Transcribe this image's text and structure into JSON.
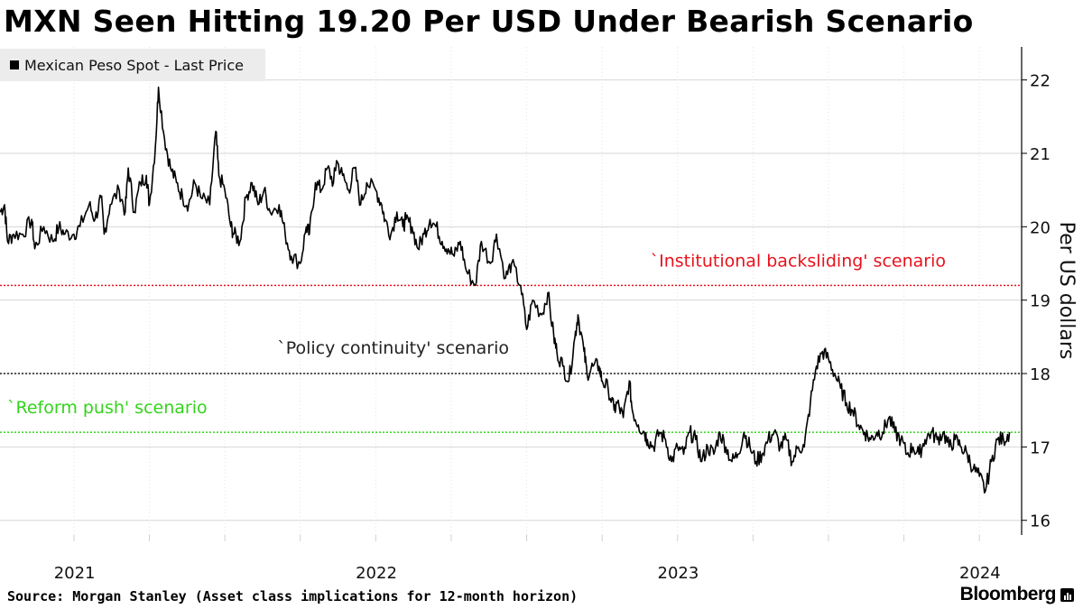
{
  "chart_data": {
    "type": "line",
    "title": "MXN Seen Hitting 19.20 Per USD Under Bearish Scenario",
    "legend": [
      {
        "label": "Mexican Peso Spot - Last Price",
        "color": "#000000"
      }
    ],
    "legend_position": "top-left",
    "ylabel": "Per US dollars",
    "y_axis_position": "right",
    "ylim": [
      15.8,
      22.45
    ],
    "y_ticks": [
      16,
      17,
      18,
      19,
      20,
      21,
      22
    ],
    "grid": true,
    "xlim": [
      2020.755,
      2024.14
    ],
    "x_ticks": [
      {
        "label": "2021",
        "value": 2021.0
      },
      {
        "label": "2022",
        "value": 2022.0
      },
      {
        "label": "2023",
        "value": 2023.0
      },
      {
        "label": "2024",
        "value": 2024.0
      }
    ],
    "reference_lines": [
      {
        "label": "`Institutional backsliding' scenario",
        "value": 19.2,
        "color": "#e8121c"
      },
      {
        "label": "`Policy continuity' scenario",
        "value": 18.0,
        "color": "#222222"
      },
      {
        "label": "`Reform push' scenario",
        "value": 17.2,
        "color": "#33d41c"
      }
    ],
    "series": [
      {
        "name": "Mexican Peso Spot - Last Price",
        "x": [
          2020.755,
          2020.77,
          2020.78,
          2020.8,
          2020.83,
          2020.86,
          2020.87,
          2020.9,
          2020.93,
          2020.95,
          2020.97,
          2021.0,
          2021.02,
          2021.05,
          2021.07,
          2021.09,
          2021.1,
          2021.12,
          2021.15,
          2021.17,
          2021.18,
          2021.2,
          2021.22,
          2021.24,
          2021.25,
          2021.27,
          2021.28,
          2021.3,
          2021.32,
          2021.34,
          2021.36,
          2021.38,
          2021.4,
          2021.42,
          2021.45,
          2021.47,
          2021.48,
          2021.5,
          2021.52,
          2021.53,
          2021.55,
          2021.57,
          2021.59,
          2021.61,
          2021.63,
          2021.65,
          2021.68,
          2021.7,
          2021.72,
          2021.75,
          2021.77,
          2021.78,
          2021.8,
          2021.82,
          2021.84,
          2021.86,
          2021.87,
          2021.89,
          2021.91,
          2021.93,
          2021.95,
          2021.97,
          2022.0,
          2022.02,
          2022.03,
          2022.05,
          2022.07,
          2022.09,
          2022.1,
          2022.12,
          2022.14,
          2022.16,
          2022.18,
          2022.2,
          2022.22,
          2022.24,
          2022.26,
          2022.28,
          2022.3,
          2022.33,
          2022.35,
          2022.38,
          2022.4,
          2022.43,
          2022.45,
          2022.48,
          2022.5,
          2022.52,
          2022.55,
          2022.57,
          2022.59,
          2022.6,
          2022.62,
          2022.64,
          2022.66,
          2022.67,
          2022.69,
          2022.7,
          2022.72,
          2022.74,
          2022.75,
          2022.77,
          2022.79,
          2022.8,
          2022.82,
          2022.84,
          2022.85,
          2022.87,
          2022.89,
          2022.9,
          2022.92,
          2022.94,
          2022.96,
          2022.98,
          2023.0,
          2023.02,
          2023.04,
          2023.06,
          2023.08,
          2023.1,
          2023.12,
          2023.14,
          2023.16,
          2023.18,
          2023.2,
          2023.22,
          2023.24,
          2023.26,
          2023.28,
          2023.3,
          2023.32,
          2023.34,
          2023.36,
          2023.38,
          2023.4,
          2023.42,
          2023.44,
          2023.46,
          2023.48,
          2023.5,
          2023.52,
          2023.54,
          2023.56,
          2023.58,
          2023.6,
          2023.62,
          2023.64,
          2023.66,
          2023.68,
          2023.7,
          2023.72,
          2023.74,
          2023.76,
          2023.78,
          2023.8,
          2023.82,
          2023.84,
          2023.86,
          2023.88,
          2023.9,
          2023.92,
          2023.94,
          2023.96,
          2023.98,
          2024.0,
          2024.02,
          2024.04,
          2024.06,
          2024.08,
          2024.1
        ],
        "values": [
          20.2,
          20.3,
          19.8,
          19.9,
          19.9,
          20.1,
          19.7,
          20.0,
          19.8,
          20.0,
          19.9,
          19.9,
          20.0,
          20.3,
          20.1,
          20.4,
          19.9,
          20.3,
          20.5,
          20.2,
          20.8,
          20.2,
          20.6,
          20.7,
          20.3,
          21.1,
          21.9,
          21.2,
          20.8,
          20.6,
          20.4,
          20.3,
          20.6,
          20.4,
          20.3,
          21.3,
          20.7,
          20.5,
          20.0,
          19.9,
          19.8,
          20.4,
          20.6,
          20.3,
          20.5,
          20.2,
          20.3,
          19.9,
          19.6,
          19.5,
          20.0,
          19.9,
          20.6,
          20.5,
          20.8,
          20.6,
          20.9,
          20.7,
          20.5,
          20.8,
          20.3,
          20.6,
          20.5,
          20.3,
          20.1,
          19.9,
          20.2,
          20.0,
          20.1,
          20.0,
          19.7,
          19.9,
          20.1,
          20.0,
          19.8,
          19.7,
          19.6,
          19.8,
          19.4,
          19.2,
          19.8,
          19.5,
          19.9,
          19.3,
          19.5,
          19.2,
          18.6,
          19.0,
          18.8,
          19.1,
          18.5,
          18.3,
          18.1,
          17.9,
          18.5,
          18.8,
          18.3,
          18.0,
          18.1,
          18.1,
          17.9,
          17.8,
          17.5,
          17.6,
          17.4,
          17.9,
          17.5,
          17.3,
          17.2,
          17.1,
          17.0,
          17.2,
          17.1,
          16.8,
          17.0,
          16.9,
          17.2,
          17.1,
          16.8,
          17.0,
          16.9,
          17.2,
          17.0,
          16.8,
          16.9,
          17.2,
          17.0,
          16.8,
          16.9,
          17.1,
          17.2,
          17.0,
          17.1,
          16.8,
          17.0,
          17.0,
          17.6,
          18.1,
          18.3,
          18.2,
          18.0,
          17.8,
          17.6,
          17.5,
          17.3,
          17.2,
          17.1,
          17.2,
          17.2,
          17.4,
          17.2,
          17.1,
          16.9,
          17.0,
          16.9,
          17.1,
          17.2,
          17.1,
          17.2,
          17.0,
          17.1,
          17.0,
          16.9,
          16.7,
          16.6,
          16.4,
          16.8,
          17.1,
          17.1,
          17.2
        ]
      }
    ]
  },
  "source": {
    "text": "Source: Morgan Stanley (Asset class implications for 12-month horizon)"
  },
  "brand": {
    "name": "Bloomberg"
  }
}
